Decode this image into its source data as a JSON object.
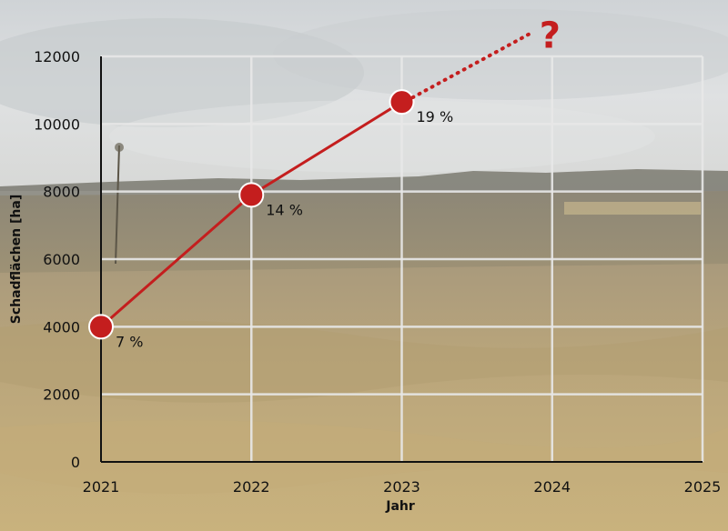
{
  "chart_data": {
    "type": "line",
    "title": "",
    "xlabel": "Jahr",
    "ylabel": "Schadflächen [ha]",
    "x_ticks": [
      "2021",
      "2022",
      "2023",
      "2024",
      "2025"
    ],
    "y_ticks": [
      "0",
      "2000",
      "4000",
      "6000",
      "8000",
      "10000",
      "12000"
    ],
    "xlim": [
      2021,
      2025
    ],
    "ylim": [
      0,
      12000
    ],
    "grid": true,
    "series": [
      {
        "color": "#c41e1e",
        "points": [
          {
            "x": 2021,
            "y": 4000,
            "label": "7 %"
          },
          {
            "x": 2022,
            "y": 7900,
            "label": "14 %"
          },
          {
            "x": 2023,
            "y": 10650,
            "label": "19 %"
          }
        ]
      }
    ],
    "projection": {
      "from": {
        "x": 2023,
        "y": 10650
      },
      "to": {
        "x": 2024,
        "y": 12950
      },
      "style": "dotted",
      "symbol": "?"
    }
  },
  "colors": {
    "line": "#c41e1e",
    "marker_stroke": "#ffffff",
    "grid": "#e8e8e8",
    "axis": "#111111",
    "question": "#c41e1e"
  }
}
